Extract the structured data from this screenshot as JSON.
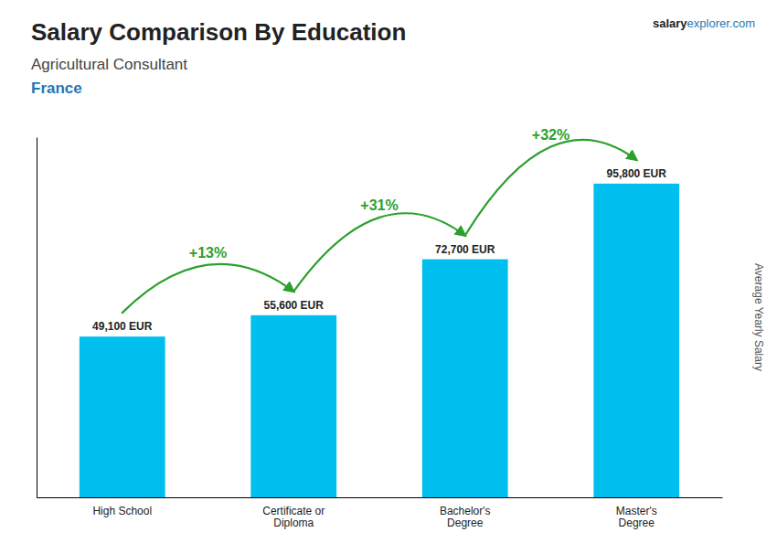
{
  "chart_data": {
    "type": "bar",
    "title": "Salary Comparison By Education",
    "subtitle": [
      "Agricultural Consultant",
      "France"
    ],
    "ylabel": "Average Yearly Salary",
    "annotations": [
      "+13%",
      "+31%",
      "+32%",
      "salary",
      "explorer.com"
    ],
    "categories": [
      "High School",
      "Certificate or\nDiploma",
      "Bachelor's\nDegree",
      "Master's\nDegree"
    ],
    "values": [
      49100,
      55600,
      72700,
      95800
    ],
    "value_labels": [
      "49,100 EUR",
      "55,600 EUR",
      "72,700 EUR",
      "95,800 EUR"
    ],
    "data_labels": true,
    "color": "#00bfef",
    "ylim": [
      0,
      110000
    ],
    "grid": false,
    "tick_labels": "x"
  }
}
